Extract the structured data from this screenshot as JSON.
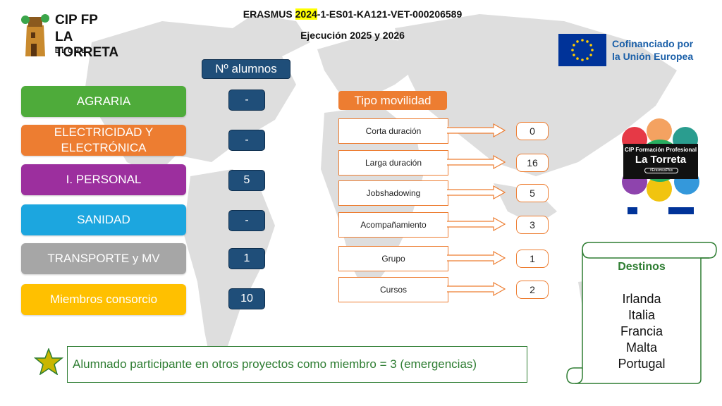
{
  "logo": {
    "line1": "CIP FP",
    "line2": "LA TORRETA",
    "line3": "ELCHE"
  },
  "header": {
    "title_prefix": "ERASMUS ",
    "title_highlight": "2024",
    "title_suffix": "-1-ES01-KA121-VET-000206589",
    "subtitle": "Ejecución 2025 y 2026"
  },
  "eu": {
    "line1": "Cofinanciado por",
    "line2": "la Unión Europea"
  },
  "badge": {
    "title1": "CIP Formación Profesional",
    "title2": "La Torreta",
    "tag": "#ErasmusPlus"
  },
  "students_header": "Nº alumnos",
  "categories": [
    {
      "label": "AGRARIA",
      "color": "#4eab3a",
      "count": "-"
    },
    {
      "label": "ELECTRICIDAD Y ELECTRÓNICA",
      "color": "#ed7d31",
      "count": "-"
    },
    {
      "label": "I. PERSONAL",
      "color": "#9c2f9e",
      "count": "5"
    },
    {
      "label": "SANIDAD",
      "color": "#1ca6df",
      "count": "-"
    },
    {
      "label": "TRANSPORTE y MV",
      "color": "#a6a6a6",
      "count": "1"
    },
    {
      "label": "Miembros consorcio",
      "color": "#ffc000",
      "count": "10"
    }
  ],
  "mobility_header": "Tipo movilidad",
  "mobility": [
    {
      "label": "Corta duración",
      "value": "0"
    },
    {
      "label": "Larga duración",
      "value": "16"
    },
    {
      "label": "Jobshadowing",
      "value": "5"
    },
    {
      "label": "Acompañamiento",
      "value": "3"
    },
    {
      "label": "Grupo",
      "value": "1"
    },
    {
      "label": "Cursos",
      "value": "2"
    }
  ],
  "destinations": {
    "title": "Destinos",
    "items": [
      "Irlanda",
      "Italia",
      "Francia",
      "Malta",
      "Portugal"
    ]
  },
  "note": "Alumnado participante en otros proyectos como miembro = 3 (emergencias)",
  "colors": {
    "navy": "#1f4e79",
    "orange": "#ed7d31",
    "green": "#4eab3a",
    "eu_blue": "#003399"
  }
}
